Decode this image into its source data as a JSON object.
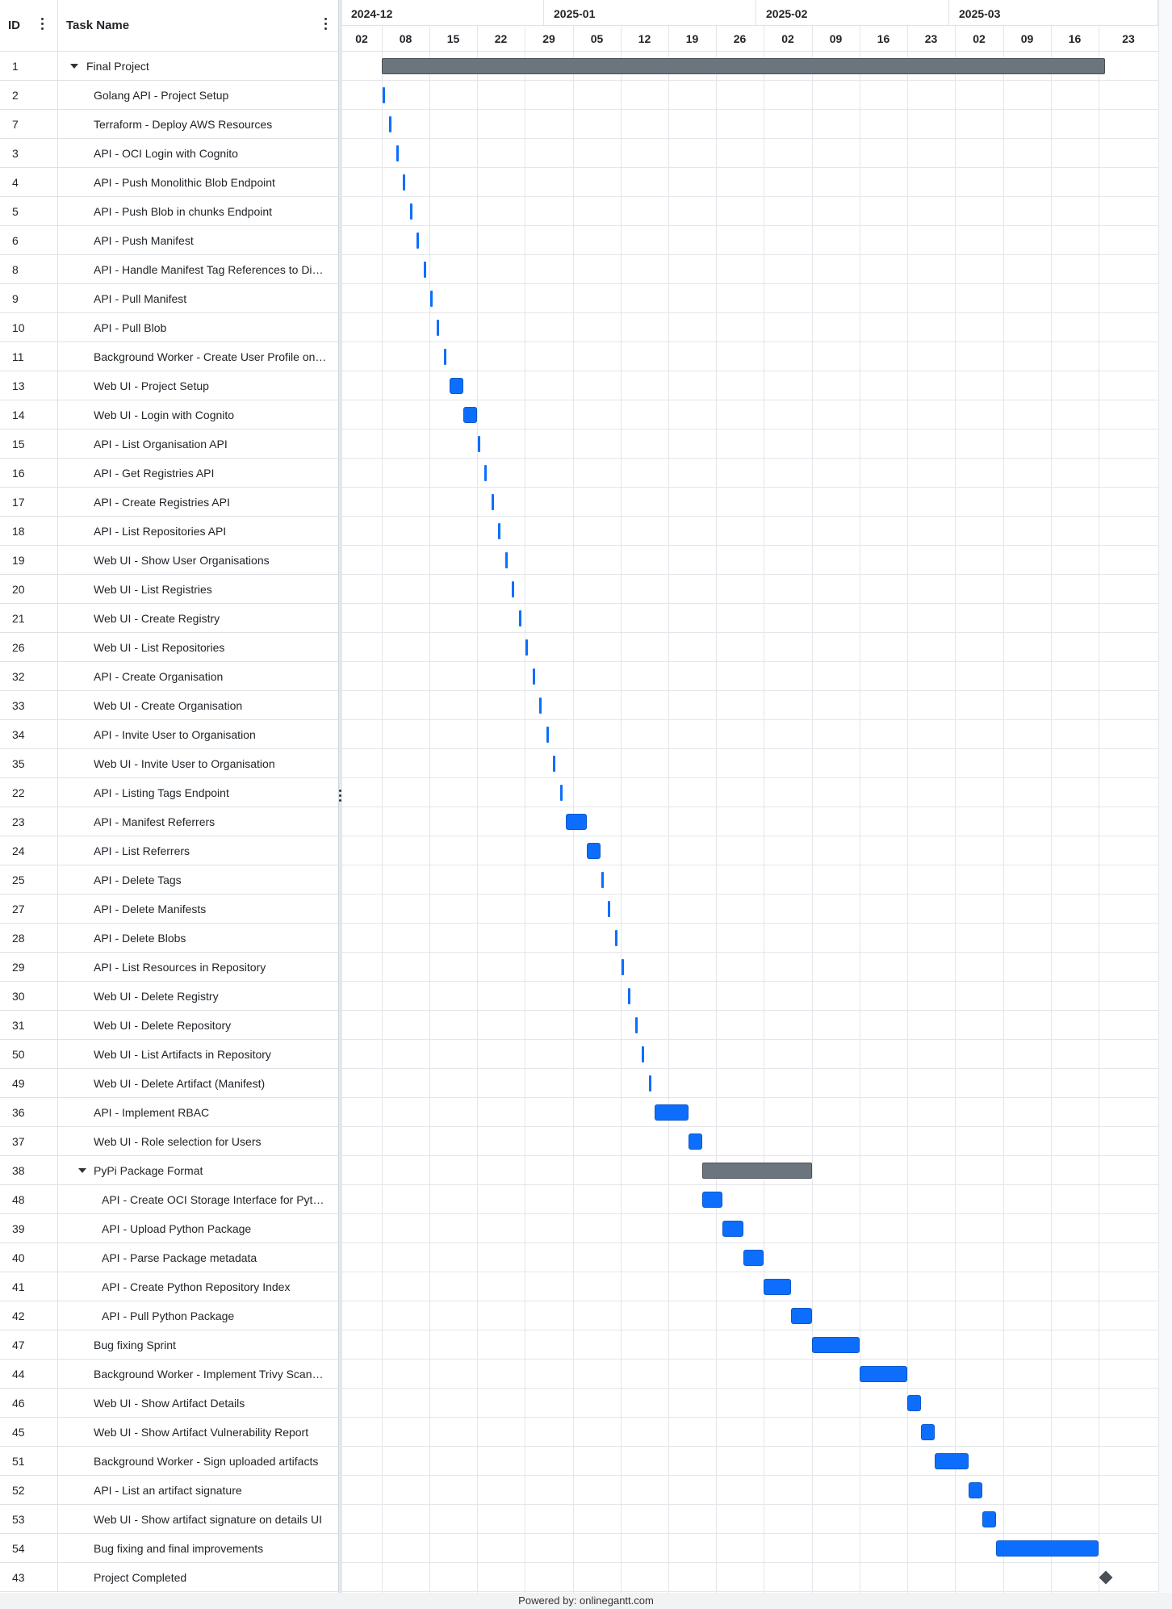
{
  "header": {
    "id_label": "ID",
    "name_label": "Task Name"
  },
  "months": [
    "2024-12",
    "2025-01",
    "2025-02",
    "2025-03"
  ],
  "weeks": [
    "02",
    "08",
    "15",
    "22",
    "29",
    "05",
    "12",
    "19",
    "26",
    "02",
    "09",
    "16",
    "23",
    "02",
    "09",
    "16",
    "23"
  ],
  "tasks": [
    {
      "id": "1",
      "name": "Final Project",
      "type": "group",
      "level": 0,
      "expanded": true,
      "start": "2024-12-08",
      "end": "2025-03-23"
    },
    {
      "id": "2",
      "name": "Golang API - Project Setup",
      "type": "task",
      "level": 1,
      "start": "2024-12-08",
      "end": "2024-12-08"
    },
    {
      "id": "7",
      "name": "Terraform - Deploy AWS Resources",
      "type": "task",
      "level": 1,
      "start": "2024-12-09",
      "end": "2024-12-09"
    },
    {
      "id": "3",
      "name": "API - OCI Login with Cognito",
      "type": "task",
      "level": 1,
      "start": "2024-12-10",
      "end": "2024-12-10"
    },
    {
      "id": "4",
      "name": "API - Push Monolithic Blob Endpoint",
      "type": "task",
      "level": 1,
      "start": "2024-12-11",
      "end": "2024-12-11"
    },
    {
      "id": "5",
      "name": "API - Push Blob in chunks Endpoint",
      "type": "task",
      "level": 1,
      "start": "2024-12-12",
      "end": "2024-12-12"
    },
    {
      "id": "6",
      "name": "API - Push Manifest",
      "type": "task",
      "level": 1,
      "start": "2024-12-13",
      "end": "2024-12-13"
    },
    {
      "id": "8",
      "name": "API - Handle Manifest Tag References to Di…",
      "type": "task",
      "level": 1,
      "start": "2024-12-14",
      "end": "2024-12-14"
    },
    {
      "id": "9",
      "name": "API - Pull Manifest",
      "type": "task",
      "level": 1,
      "start": "2024-12-15",
      "end": "2024-12-15"
    },
    {
      "id": "10",
      "name": "API - Pull Blob",
      "type": "task",
      "level": 1,
      "start": "2024-12-16",
      "end": "2024-12-16"
    },
    {
      "id": "11",
      "name": "Background Worker - Create User Profile on…",
      "type": "task",
      "level": 1,
      "start": "2024-12-17",
      "end": "2024-12-17"
    },
    {
      "id": "13",
      "name": "Web UI - Project Setup",
      "type": "task",
      "level": 1,
      "start": "2024-12-18",
      "end": "2024-12-19"
    },
    {
      "id": "14",
      "name": "Web UI - Login with Cognito",
      "type": "task",
      "level": 1,
      "start": "2024-12-20",
      "end": "2024-12-21"
    },
    {
      "id": "15",
      "name": "API - List Organisation API",
      "type": "task",
      "level": 1,
      "start": "2024-12-22",
      "end": "2024-12-22"
    },
    {
      "id": "16",
      "name": "API - Get Registries API",
      "type": "task",
      "level": 1,
      "start": "2024-12-23",
      "end": "2024-12-23"
    },
    {
      "id": "17",
      "name": "API - Create Registries API",
      "type": "task",
      "level": 1,
      "start": "2024-12-24",
      "end": "2024-12-24"
    },
    {
      "id": "18",
      "name": "API - List Repositories API",
      "type": "task",
      "level": 1,
      "start": "2024-12-25",
      "end": "2024-12-25"
    },
    {
      "id": "19",
      "name": "Web UI - Show User Organisations",
      "type": "task",
      "level": 1,
      "start": "2024-12-26",
      "end": "2024-12-26"
    },
    {
      "id": "20",
      "name": "Web UI - List Registries",
      "type": "task",
      "level": 1,
      "start": "2024-12-27",
      "end": "2024-12-27"
    },
    {
      "id": "21",
      "name": "Web UI - Create Registry",
      "type": "task",
      "level": 1,
      "start": "2024-12-28",
      "end": "2024-12-28"
    },
    {
      "id": "26",
      "name": "Web UI - List Repositories",
      "type": "task",
      "level": 1,
      "start": "2024-12-29",
      "end": "2024-12-29"
    },
    {
      "id": "32",
      "name": "API - Create Organisation",
      "type": "task",
      "level": 1,
      "start": "2024-12-30",
      "end": "2024-12-30"
    },
    {
      "id": "33",
      "name": "Web UI - Create Organisation",
      "type": "task",
      "level": 1,
      "start": "2024-12-31",
      "end": "2024-12-31"
    },
    {
      "id": "34",
      "name": "API - Invite User to Organisation",
      "type": "task",
      "level": 1,
      "start": "2025-01-01",
      "end": "2025-01-01"
    },
    {
      "id": "35",
      "name": "Web UI - Invite User to Organisation",
      "type": "task",
      "level": 1,
      "start": "2025-01-02",
      "end": "2025-01-02"
    },
    {
      "id": "22",
      "name": "API - Listing Tags Endpoint",
      "type": "task",
      "level": 1,
      "start": "2025-01-03",
      "end": "2025-01-03"
    },
    {
      "id": "23",
      "name": "API - Manifest Referrers",
      "type": "task",
      "level": 1,
      "start": "2025-01-04",
      "end": "2025-01-06"
    },
    {
      "id": "24",
      "name": "API - List Referrers",
      "type": "task",
      "level": 1,
      "start": "2025-01-07",
      "end": "2025-01-08"
    },
    {
      "id": "25",
      "name": "API - Delete Tags",
      "type": "task",
      "level": 1,
      "start": "2025-01-09",
      "end": "2025-01-09"
    },
    {
      "id": "27",
      "name": "API - Delete Manifests",
      "type": "task",
      "level": 1,
      "start": "2025-01-10",
      "end": "2025-01-10"
    },
    {
      "id": "28",
      "name": "API - Delete Blobs",
      "type": "task",
      "level": 1,
      "start": "2025-01-11",
      "end": "2025-01-11"
    },
    {
      "id": "29",
      "name": "API - List Resources in Repository",
      "type": "task",
      "level": 1,
      "start": "2025-01-12",
      "end": "2025-01-12"
    },
    {
      "id": "30",
      "name": "Web UI - Delete Registry",
      "type": "task",
      "level": 1,
      "start": "2025-01-13",
      "end": "2025-01-13"
    },
    {
      "id": "31",
      "name": "Web UI - Delete Repository",
      "type": "task",
      "level": 1,
      "start": "2025-01-14",
      "end": "2025-01-14"
    },
    {
      "id": "50",
      "name": "Web UI - List Artifacts in Repository",
      "type": "task",
      "level": 1,
      "start": "2025-01-15",
      "end": "2025-01-15"
    },
    {
      "id": "49",
      "name": "Web UI - Delete Artifact (Manifest)",
      "type": "task",
      "level": 1,
      "start": "2025-01-16",
      "end": "2025-01-16"
    },
    {
      "id": "36",
      "name": "API - Implement RBAC",
      "type": "task",
      "level": 1,
      "start": "2025-01-17",
      "end": "2025-01-21"
    },
    {
      "id": "37",
      "name": "Web UI - Role selection for Users",
      "type": "task",
      "level": 1,
      "start": "2025-01-22",
      "end": "2025-01-23"
    },
    {
      "id": "38",
      "name": "PyPi Package Format",
      "type": "group",
      "level": 1,
      "expanded": true,
      "start": "2025-01-24",
      "end": "2025-02-08"
    },
    {
      "id": "48",
      "name": "API - Create OCI Storage Interface for Pyt…",
      "type": "task",
      "level": 2,
      "start": "2025-01-24",
      "end": "2025-01-26"
    },
    {
      "id": "39",
      "name": "API - Upload Python Package",
      "type": "task",
      "level": 2,
      "start": "2025-01-27",
      "end": "2025-01-29"
    },
    {
      "id": "40",
      "name": "API - Parse Package metadata",
      "type": "task",
      "level": 2,
      "start": "2025-01-30",
      "end": "2025-02-01"
    },
    {
      "id": "41",
      "name": "API - Create Python Repository Index",
      "type": "task",
      "level": 2,
      "start": "2025-02-02",
      "end": "2025-02-05"
    },
    {
      "id": "42",
      "name": "API - Pull Python Package",
      "type": "task",
      "level": 2,
      "start": "2025-02-06",
      "end": "2025-02-08"
    },
    {
      "id": "47",
      "name": "Bug fixing Sprint",
      "type": "task",
      "level": 1,
      "start": "2025-02-09",
      "end": "2025-02-15"
    },
    {
      "id": "44",
      "name": "Background Worker - Implement Trivy Scan…",
      "type": "task",
      "level": 1,
      "start": "2025-02-16",
      "end": "2025-02-22"
    },
    {
      "id": "46",
      "name": "Web UI - Show Artifact Details",
      "type": "task",
      "level": 1,
      "start": "2025-02-23",
      "end": "2025-02-24"
    },
    {
      "id": "45",
      "name": "Web UI - Show Artifact Vulnerability Report",
      "type": "task",
      "level": 1,
      "start": "2025-02-25",
      "end": "2025-02-26"
    },
    {
      "id": "51",
      "name": "Background Worker - Sign uploaded artifacts",
      "type": "task",
      "level": 1,
      "start": "2025-02-27",
      "end": "2025-03-03"
    },
    {
      "id": "52",
      "name": "API - List an artifact signature",
      "type": "task",
      "level": 1,
      "start": "2025-03-04",
      "end": "2025-03-05"
    },
    {
      "id": "53",
      "name": "Web UI - Show artifact signature on details UI",
      "type": "task",
      "level": 1,
      "start": "2025-03-06",
      "end": "2025-03-07"
    },
    {
      "id": "54",
      "name": "Bug fixing and final improvements",
      "type": "task",
      "level": 1,
      "start": "2025-03-08",
      "end": "2025-03-22"
    },
    {
      "id": "43",
      "name": "Project Completed",
      "type": "milestone",
      "level": 1,
      "start": "2025-03-23",
      "end": "2025-03-23"
    }
  ],
  "footer": {
    "text": "Powered by: onlinegantt.com"
  },
  "colors": {
    "task_bar": "#0d6efd",
    "group_bar": "#6c757d",
    "milestone": "#495057",
    "grid_line": "#e3e6ea"
  },
  "icons": [
    "kebab-menu-icon",
    "caret-down-icon",
    "splitter-grip-icon",
    "milestone-diamond-icon"
  ]
}
